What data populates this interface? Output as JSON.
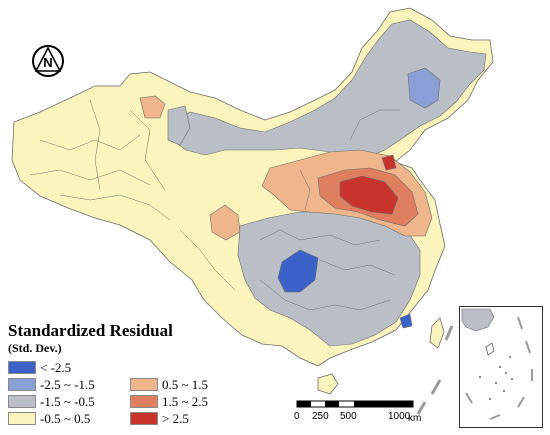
{
  "north_arrow": {
    "letter": "N"
  },
  "legend": {
    "title": "Standardized Residual",
    "subtitle": "(Std. Dev.)",
    "items": [
      {
        "label": "< -2.5",
        "color": "#3b62c8"
      },
      {
        "label": "-2.5 ~ -1.5",
        "color": "#8a9fd6"
      },
      {
        "label": "-1.5 ~ -0.5",
        "color": "#b9bec7"
      },
      {
        "label": "-0.5 ~ 0.5",
        "color": "#fbf5bd"
      },
      {
        "label": "0.5 ~ 1.5",
        "color": "#eeb68a"
      },
      {
        "label": "1.5 ~ 2.5",
        "color": "#e07f5f"
      },
      {
        "label": "> 2.5",
        "color": "#c8342c"
      }
    ]
  },
  "scale_bar": {
    "ticks": [
      "0",
      "250",
      "500",
      "1000"
    ],
    "unit": "km"
  }
}
